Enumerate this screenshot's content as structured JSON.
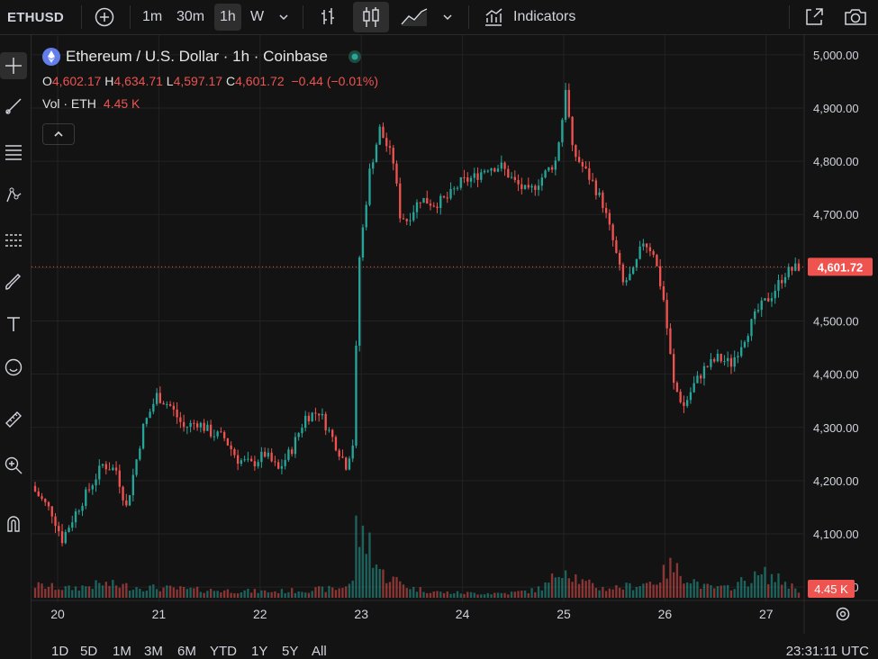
{
  "toolbar": {
    "symbol": "ETHUSD",
    "intervals": [
      "1m",
      "30m",
      "1h",
      "W"
    ],
    "active_interval": "1h",
    "indicators_label": "Indicators"
  },
  "legend": {
    "title": "Ethereum / U.S. Dollar · 1h · Coinbase",
    "ohlc": {
      "o_label": "O",
      "o": "4,602.17",
      "h_label": "H",
      "h": "4,634.71",
      "l_label": "L",
      "l": "4,597.17",
      "c_label": "C",
      "c": "4,601.72",
      "change": "−0.44 (−0.01%)"
    },
    "vol_label": "Vol · ETH",
    "vol_value": "4.45 K"
  },
  "bottom": {
    "ranges": [
      "1D",
      "5D",
      "1M",
      "3M",
      "6M",
      "YTD",
      "1Y",
      "5Y",
      "All"
    ],
    "clock": "23:31:11 UTC"
  },
  "colors": {
    "up": "#26a69a",
    "down": "#ef5350",
    "bg": "#131313",
    "grid": "#232323"
  },
  "chart_data": {
    "type": "candlestick",
    "y_ticks": [
      "5,000.00",
      "4,900.00",
      "4,800.00",
      "4,700.00",
      "4,600.00",
      "4,500.00",
      "4,400.00",
      "4,300.00",
      "4,200.00",
      "4,100.00",
      "4,000.00"
    ],
    "x_ticks": [
      "20",
      "21",
      "22",
      "23",
      "24",
      "25",
      "26",
      "27"
    ],
    "ylim": [
      3980,
      5020
    ],
    "last_price_label": "4,601.72",
    "last_volume_label": "4.45 K",
    "close_path": [
      [
        0,
        4180
      ],
      [
        5,
        4140
      ],
      [
        8,
        4090
      ],
      [
        12,
        4140
      ],
      [
        16,
        4185
      ],
      [
        20,
        4230
      ],
      [
        24,
        4220
      ],
      [
        27,
        4150
      ],
      [
        32,
        4300
      ],
      [
        36,
        4360
      ],
      [
        40,
        4340
      ],
      [
        44,
        4300
      ],
      [
        48,
        4310
      ],
      [
        52,
        4290
      ],
      [
        56,
        4280
      ],
      [
        60,
        4240
      ],
      [
        64,
        4230
      ],
      [
        68,
        4250
      ],
      [
        72,
        4220
      ],
      [
        76,
        4260
      ],
      [
        80,
        4320
      ],
      [
        84,
        4330
      ],
      [
        88,
        4280
      ],
      [
        92,
        4230
      ],
      [
        94,
        4270
      ],
      [
        96,
        4620
      ],
      [
        99,
        4780
      ],
      [
        102,
        4860
      ],
      [
        104,
        4830
      ],
      [
        106,
        4800
      ],
      [
        108,
        4700
      ],
      [
        110,
        4690
      ],
      [
        114,
        4730
      ],
      [
        118,
        4720
      ],
      [
        122,
        4730
      ],
      [
        126,
        4760
      ],
      [
        130,
        4770
      ],
      [
        134,
        4790
      ],
      [
        138,
        4790
      ],
      [
        142,
        4760
      ],
      [
        146,
        4740
      ],
      [
        150,
        4770
      ],
      [
        154,
        4800
      ],
      [
        156,
        4880
      ],
      [
        157,
        4940
      ],
      [
        159,
        4820
      ],
      [
        162,
        4790
      ],
      [
        165,
        4760
      ],
      [
        168,
        4720
      ],
      [
        171,
        4650
      ],
      [
        174,
        4570
      ],
      [
        177,
        4590
      ],
      [
        180,
        4650
      ],
      [
        183,
        4630
      ],
      [
        186,
        4540
      ],
      [
        189,
        4380
      ],
      [
        192,
        4340
      ],
      [
        195,
        4380
      ],
      [
        198,
        4410
      ],
      [
        202,
        4430
      ],
      [
        206,
        4420
      ],
      [
        210,
        4470
      ],
      [
        214,
        4520
      ],
      [
        218,
        4550
      ],
      [
        222,
        4590
      ],
      [
        226,
        4602
      ]
    ],
    "volume_path": [
      [
        0,
        0.16
      ],
      [
        10,
        0.12
      ],
      [
        20,
        0.18
      ],
      [
        30,
        0.14
      ],
      [
        40,
        0.12
      ],
      [
        50,
        0.1
      ],
      [
        60,
        0.09
      ],
      [
        70,
        0.08
      ],
      [
        80,
        0.1
      ],
      [
        90,
        0.12
      ],
      [
        94,
        0.22
      ],
      [
        95,
        0.9
      ],
      [
        97,
        0.73
      ],
      [
        99,
        0.72
      ],
      [
        101,
        0.45
      ],
      [
        103,
        0.3
      ],
      [
        106,
        0.24
      ],
      [
        112,
        0.12
      ],
      [
        120,
        0.07
      ],
      [
        130,
        0.06
      ],
      [
        140,
        0.06
      ],
      [
        148,
        0.1
      ],
      [
        152,
        0.18
      ],
      [
        156,
        0.42
      ],
      [
        158,
        0.35
      ],
      [
        162,
        0.2
      ],
      [
        168,
        0.12
      ],
      [
        176,
        0.15
      ],
      [
        184,
        0.22
      ],
      [
        188,
        0.4
      ],
      [
        192,
        0.3
      ],
      [
        198,
        0.14
      ],
      [
        204,
        0.12
      ],
      [
        210,
        0.22
      ],
      [
        216,
        0.3
      ],
      [
        222,
        0.2
      ],
      [
        226,
        0.1
      ]
    ]
  }
}
